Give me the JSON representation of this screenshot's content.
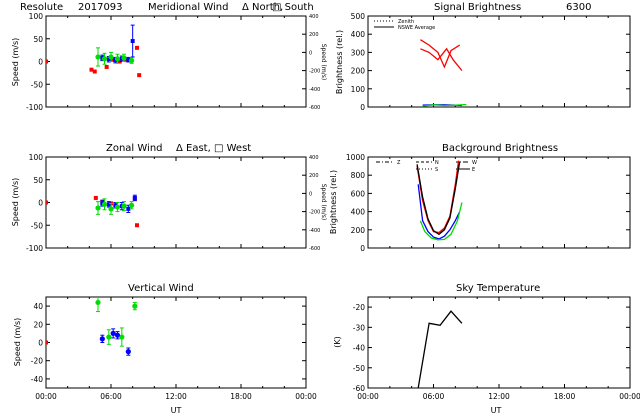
{
  "figure": {
    "header_station": "Resolute",
    "header_date": "2017093"
  },
  "chart_data": [
    {
      "id": "meridional",
      "type": "scatter",
      "title": "Meridional Wind",
      "legend": [
        "Δ North,",
        "□ South"
      ],
      "xlabel": "",
      "ylabel": "Speed (m/s)",
      "y2label": "Speed (m/s)",
      "xlim": [
        0,
        24
      ],
      "ylim": [
        -100,
        100
      ],
      "y2lim": [
        -600,
        400
      ],
      "xticks": [
        0,
        6,
        12,
        18,
        24
      ],
      "xtick_labels": [],
      "yticks": [
        -100,
        -50,
        0,
        50,
        100
      ],
      "ytick_labels": [
        "-100",
        "-50",
        "0",
        "50",
        "100"
      ],
      "y2ticks": [
        -600,
        -400,
        -200,
        0,
        200,
        400
      ],
      "y2tick_labels": [
        "-600",
        "-400",
        "-200",
        "0",
        "200",
        "400"
      ],
      "colors": {
        "red": "#ff0000",
        "blue": "#0000ff",
        "green": "#00dd00"
      },
      "series": [
        {
          "name": "red",
          "color": "#ff0000",
          "marker": "square",
          "points": [
            {
              "x": 0.0,
              "y": 0
            },
            {
              "x": 4.2,
              "y": -18
            },
            {
              "x": 4.5,
              "y": -22
            },
            {
              "x": 5.6,
              "y": -12
            },
            {
              "x": 6.2,
              "y": 4
            },
            {
              "x": 6.8,
              "y": 0
            },
            {
              "x": 7.4,
              "y": 3
            },
            {
              "x": 8.4,
              "y": 30
            },
            {
              "x": 8.6,
              "y": -30
            }
          ]
        },
        {
          "name": "blue",
          "color": "#0000ff",
          "marker": "square",
          "points": [
            {
              "x": 5.2,
              "y": 8,
              "err": 6
            },
            {
              "x": 5.8,
              "y": 5,
              "err": 6
            },
            {
              "x": 6.4,
              "y": 3,
              "err": 6
            },
            {
              "x": 7.0,
              "y": 6,
              "err": 6
            },
            {
              "x": 7.6,
              "y": 4,
              "err": 5
            },
            {
              "x": 8.0,
              "y": 45,
              "err": 35
            }
          ]
        },
        {
          "name": "green",
          "color": "#00dd00",
          "marker": "circle",
          "points": [
            {
              "x": 4.8,
              "y": 10,
              "err": 20
            },
            {
              "x": 5.4,
              "y": 6,
              "err": 12
            },
            {
              "x": 6.0,
              "y": 10,
              "err": 10
            },
            {
              "x": 6.6,
              "y": 6,
              "err": 10
            },
            {
              "x": 7.2,
              "y": 8,
              "err": 8
            },
            {
              "x": 7.9,
              "y": 2,
              "err": 6
            }
          ]
        }
      ]
    },
    {
      "id": "signal",
      "type": "line",
      "title": "Signal Brightness",
      "wavelength": "6300",
      "legend": [
        "Zenith",
        "NSWE Average"
      ],
      "xlabel": "",
      "ylabel": "Brightness (rel.)",
      "xlim": [
        0,
        24
      ],
      "ylim": [
        0,
        500
      ],
      "xticks": [
        0,
        6,
        12,
        18,
        24
      ],
      "xtick_labels": [],
      "yticks": [
        0,
        100,
        200,
        300,
        400,
        500
      ],
      "ytick_labels": [
        "0",
        "100",
        "200",
        "300",
        "400",
        "500"
      ],
      "series": [
        {
          "name": "red-a",
          "color": "#ff0000",
          "x": [
            4.8,
            5.6,
            6.4,
            7.0,
            7.6,
            8.4
          ],
          "y": [
            370,
            340,
            300,
            220,
            310,
            340
          ]
        },
        {
          "name": "red-b",
          "color": "#ff0000",
          "x": [
            4.8,
            5.6,
            6.4,
            7.2,
            7.8,
            8.6
          ],
          "y": [
            320,
            300,
            260,
            320,
            260,
            200
          ]
        },
        {
          "name": "blue",
          "color": "#0000ff",
          "x": [
            5.0,
            6.0,
            7.0,
            8.0,
            8.6
          ],
          "y": [
            10,
            12,
            12,
            10,
            8
          ]
        },
        {
          "name": "green",
          "color": "#00dd00",
          "x": [
            5.0,
            6.0,
            7.0,
            8.0,
            9.0
          ],
          "y": [
            5,
            12,
            8,
            10,
            14
          ]
        }
      ]
    },
    {
      "id": "zonal",
      "type": "scatter",
      "title": "Zonal Wind",
      "legend": [
        "Δ East,",
        "□ West"
      ],
      "xlabel": "",
      "ylabel": "Speed (m/s)",
      "y2label": "Speed (m/s)",
      "xlim": [
        0,
        24
      ],
      "ylim": [
        -100,
        100
      ],
      "y2lim": [
        -600,
        400
      ],
      "xticks": [
        0,
        6,
        12,
        18,
        24
      ],
      "xtick_labels": [],
      "yticks": [
        -100,
        -50,
        0,
        50,
        100
      ],
      "ytick_labels": [
        "-100",
        "-50",
        "0",
        "50",
        "100"
      ],
      "y2ticks": [
        -600,
        -400,
        -200,
        0,
        200,
        400
      ],
      "y2tick_labels": [
        "-600",
        "-400",
        "-200",
        "0",
        "200",
        "400"
      ],
      "series": [
        {
          "name": "red",
          "color": "#ff0000",
          "marker": "square",
          "points": [
            {
              "x": 0.0,
              "y": 0
            },
            {
              "x": 4.6,
              "y": 10
            },
            {
              "x": 5.2,
              "y": 2
            },
            {
              "x": 6.0,
              "y": -2
            },
            {
              "x": 8.2,
              "y": 8
            },
            {
              "x": 8.4,
              "y": -50
            }
          ]
        },
        {
          "name": "blue",
          "color": "#0000ff",
          "marker": "square",
          "points": [
            {
              "x": 5.2,
              "y": -2,
              "err": 6
            },
            {
              "x": 5.8,
              "y": -4,
              "err": 6
            },
            {
              "x": 6.4,
              "y": -6,
              "err": 6
            },
            {
              "x": 7.0,
              "y": -8,
              "err": 8
            },
            {
              "x": 7.6,
              "y": -14,
              "err": 8
            },
            {
              "x": 8.2,
              "y": 10,
              "err": 6
            }
          ]
        },
        {
          "name": "green",
          "color": "#00dd00",
          "marker": "circle",
          "points": [
            {
              "x": 4.8,
              "y": -12,
              "err": 14
            },
            {
              "x": 5.4,
              "y": -4,
              "err": 12
            },
            {
              "x": 6.0,
              "y": -14,
              "err": 12
            },
            {
              "x": 6.6,
              "y": -10,
              "err": 10
            },
            {
              "x": 7.2,
              "y": -8,
              "err": 10
            },
            {
              "x": 7.9,
              "y": -6,
              "err": 8
            }
          ]
        }
      ]
    },
    {
      "id": "background",
      "type": "line",
      "title": "Background Brightness",
      "legend_labels": [
        "Z",
        "N",
        "S",
        "W",
        "E"
      ],
      "xlabel": "",
      "ylabel": "Brightness (rel.)",
      "xlim": [
        0,
        24
      ],
      "ylim": [
        0,
        1000
      ],
      "xticks": [
        0,
        6,
        12,
        18,
        24
      ],
      "xtick_labels": [],
      "yticks": [
        0,
        200,
        400,
        600,
        800,
        1000
      ],
      "ytick_labels": [
        "0",
        "200",
        "400",
        "600",
        "800",
        "1000"
      ],
      "series": [
        {
          "name": "red",
          "color": "#ff0000",
          "x": [
            4.5,
            5.0,
            5.5,
            6.0,
            6.5,
            7.0,
            7.5,
            8.0,
            8.3
          ],
          "y": [
            900,
            520,
            300,
            180,
            170,
            220,
            350,
            700,
            960
          ]
        },
        {
          "name": "blue",
          "color": "#0000ff",
          "x": [
            4.6,
            5.0,
            5.5,
            6.0,
            6.5,
            7.0,
            7.5,
            8.0,
            8.4
          ],
          "y": [
            700,
            300,
            180,
            120,
            100,
            130,
            200,
            300,
            400
          ]
        },
        {
          "name": "green",
          "color": "#00dd00",
          "x": [
            4.8,
            5.2,
            5.8,
            6.4,
            7.0,
            7.6,
            8.2,
            8.6
          ],
          "y": [
            300,
            180,
            110,
            90,
            95,
            150,
            300,
            500
          ]
        },
        {
          "name": "black",
          "color": "#000000",
          "x": [
            4.5,
            5.0,
            5.5,
            6.0,
            6.5,
            7.0,
            7.5,
            8.0,
            8.4
          ],
          "y": [
            920,
            560,
            320,
            190,
            150,
            200,
            330,
            650,
            950
          ]
        }
      ]
    },
    {
      "id": "vertical",
      "type": "scatter",
      "title": "Vertical Wind",
      "xlabel": "UT",
      "ylabel": "Speed (m/s)",
      "xlim": [
        0,
        24
      ],
      "ylim": [
        -50,
        50
      ],
      "xticks": [
        0,
        6,
        12,
        18,
        24
      ],
      "xtick_labels": [
        "00:00",
        "06:00",
        "12:00",
        "18:00",
        "00:00"
      ],
      "yticks": [
        -40,
        -20,
        0,
        20,
        40
      ],
      "ytick_labels": [
        "-40",
        "-20",
        "0",
        "20",
        "40"
      ],
      "series": [
        {
          "name": "red",
          "color": "#ff0000",
          "marker": "square",
          "points": [
            {
              "x": 0.0,
              "y": 0
            }
          ]
        },
        {
          "name": "blue",
          "color": "#0000ff",
          "marker": "circle",
          "points": [
            {
              "x": 5.2,
              "y": 4,
              "err": 4
            },
            {
              "x": 6.2,
              "y": 10,
              "err": 5
            },
            {
              "x": 6.6,
              "y": 8,
              "err": 4
            },
            {
              "x": 7.6,
              "y": -10,
              "err": 4
            }
          ]
        },
        {
          "name": "green",
          "color": "#00dd00",
          "marker": "circle",
          "points": [
            {
              "x": 4.8,
              "y": 44,
              "err": 10
            },
            {
              "x": 5.8,
              "y": 6,
              "err": 8
            },
            {
              "x": 7.0,
              "y": 6,
              "err": 10
            },
            {
              "x": 8.2,
              "y": 40,
              "err": 4
            }
          ]
        }
      ]
    },
    {
      "id": "sky",
      "type": "line",
      "title": "Sky Temperature",
      "xlabel": "UT",
      "ylabel": "(K)",
      "xlim": [
        0,
        24
      ],
      "ylim": [
        -60,
        -15
      ],
      "xticks": [
        0,
        6,
        12,
        18,
        24
      ],
      "xtick_labels": [
        "00:00",
        "06:00",
        "12:00",
        "18:00",
        "00:00"
      ],
      "yticks": [
        -60,
        -50,
        -40,
        -30,
        -20
      ],
      "ytick_labels": [
        "-60",
        "-50",
        "-40",
        "-30",
        "-20"
      ],
      "series": [
        {
          "name": "black",
          "color": "#000000",
          "x": [
            4.6,
            5.6,
            6.6,
            7.6,
            8.6
          ],
          "y": [
            -60,
            -28,
            -29,
            -22,
            -28
          ]
        }
      ]
    }
  ]
}
